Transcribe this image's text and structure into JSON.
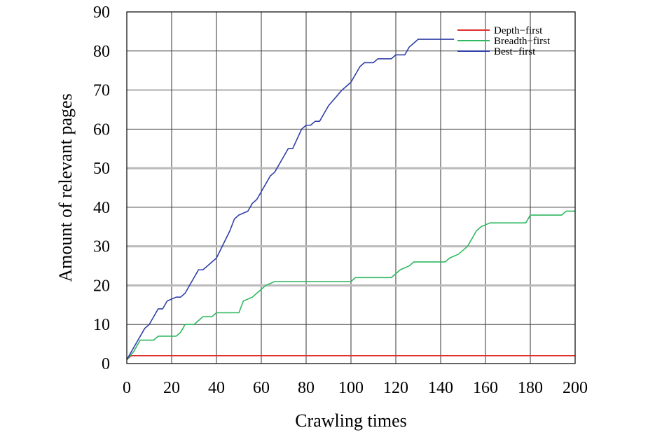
{
  "chart_data": {
    "type": "line",
    "title": "",
    "xlabel": "Crawling times",
    "ylabel": "Amount of relevant pages",
    "xlim": [
      0,
      200
    ],
    "ylim": [
      0,
      90
    ],
    "xticks": [
      0,
      20,
      40,
      60,
      80,
      100,
      120,
      140,
      160,
      180,
      200
    ],
    "yticks": [
      0,
      10,
      20,
      30,
      40,
      50,
      60,
      70,
      80,
      90
    ],
    "grid": true,
    "legend_position": "top-right",
    "series": [
      {
        "name": "Depth−first",
        "color": "#e03030",
        "points": [
          [
            0,
            1
          ],
          [
            2,
            2
          ],
          [
            200,
            2
          ]
        ]
      },
      {
        "name": "Breadth−first",
        "color": "#30b860",
        "points": [
          [
            0,
            1
          ],
          [
            3,
            3
          ],
          [
            6,
            6
          ],
          [
            12,
            6
          ],
          [
            14,
            7
          ],
          [
            22,
            7
          ],
          [
            24,
            8
          ],
          [
            26,
            10
          ],
          [
            30,
            10
          ],
          [
            32,
            11
          ],
          [
            34,
            12
          ],
          [
            38,
            12
          ],
          [
            40,
            13
          ],
          [
            50,
            13
          ],
          [
            52,
            16
          ],
          [
            56,
            17
          ],
          [
            58,
            18
          ],
          [
            60,
            19
          ],
          [
            62,
            20
          ],
          [
            66,
            21
          ],
          [
            100,
            21
          ],
          [
            102,
            22
          ],
          [
            118,
            22
          ],
          [
            120,
            23
          ],
          [
            122,
            24
          ],
          [
            126,
            25
          ],
          [
            128,
            26
          ],
          [
            142,
            26
          ],
          [
            144,
            27
          ],
          [
            148,
            28
          ],
          [
            152,
            30
          ],
          [
            156,
            34
          ],
          [
            158,
            35
          ],
          [
            162,
            36
          ],
          [
            178,
            36
          ],
          [
            180,
            38
          ],
          [
            194,
            38
          ],
          [
            196,
            39
          ],
          [
            200,
            39
          ]
        ]
      },
      {
        "name": "Best−first",
        "color": "#3040a8",
        "points": [
          [
            0,
            1
          ],
          [
            4,
            5
          ],
          [
            8,
            9
          ],
          [
            10,
            10
          ],
          [
            14,
            14
          ],
          [
            16,
            14
          ],
          [
            18,
            16
          ],
          [
            22,
            17
          ],
          [
            24,
            17
          ],
          [
            26,
            18
          ],
          [
            32,
            24
          ],
          [
            34,
            24
          ],
          [
            38,
            26
          ],
          [
            40,
            27
          ],
          [
            46,
            34
          ],
          [
            48,
            37
          ],
          [
            50,
            38
          ],
          [
            54,
            39
          ],
          [
            56,
            41
          ],
          [
            58,
            42
          ],
          [
            64,
            48
          ],
          [
            66,
            49
          ],
          [
            70,
            53
          ],
          [
            72,
            55
          ],
          [
            74,
            55
          ],
          [
            78,
            60
          ],
          [
            80,
            61
          ],
          [
            82,
            61
          ],
          [
            84,
            62
          ],
          [
            86,
            62
          ],
          [
            88,
            64
          ],
          [
            90,
            66
          ],
          [
            96,
            70
          ],
          [
            98,
            71
          ],
          [
            100,
            72
          ],
          [
            104,
            76
          ],
          [
            106,
            77
          ],
          [
            110,
            77
          ],
          [
            112,
            78
          ],
          [
            118,
            78
          ],
          [
            120,
            79
          ],
          [
            124,
            79
          ],
          [
            126,
            81
          ],
          [
            128,
            82
          ],
          [
            130,
            83
          ],
          [
            146,
            83
          ]
        ]
      }
    ]
  }
}
